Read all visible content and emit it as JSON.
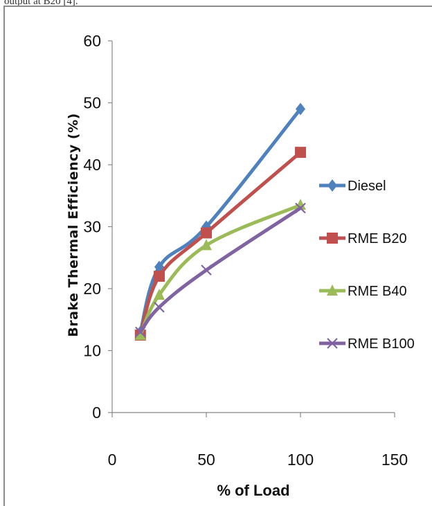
{
  "top_caption": "output at B20 [4].",
  "chart_data": {
    "type": "scatter",
    "ylabel": "Brake Thermal Efficiency (%)",
    "xlabel": "% of Load",
    "xlim": [
      0,
      150
    ],
    "ylim": [
      0,
      60
    ],
    "xticks": [
      0,
      50,
      100,
      150
    ],
    "yticks": [
      0,
      10,
      20,
      30,
      40,
      50,
      60
    ],
    "legend_position": "right",
    "grid": false,
    "series": [
      {
        "name": "Diesel",
        "color": "#4f81bd",
        "marker": "diamond",
        "x": [
          15,
          25,
          50,
          100
        ],
        "y": [
          13,
          23.5,
          30,
          49
        ]
      },
      {
        "name": "RME B20",
        "color": "#c0504d",
        "marker": "square",
        "x": [
          15,
          25,
          50,
          100
        ],
        "y": [
          12.5,
          22,
          29,
          42
        ]
      },
      {
        "name": "RME B40",
        "color": "#9bbb59",
        "marker": "triangle",
        "x": [
          15,
          25,
          50,
          100
        ],
        "y": [
          12.5,
          19,
          27,
          33.5
        ]
      },
      {
        "name": "RME B100",
        "color": "#8064a2",
        "marker": "x",
        "x": [
          15,
          25,
          50,
          100
        ],
        "y": [
          13,
          17,
          23,
          33
        ]
      }
    ]
  }
}
